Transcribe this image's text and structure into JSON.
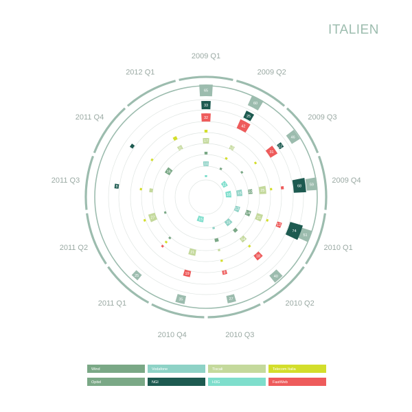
{
  "title": "ITALIEN",
  "chart_data": {
    "type": "radial-bar",
    "title": "ITALIEN",
    "categories": [
      "2009 Q1",
      "2009 Q2",
      "2009 Q3",
      "2009 Q4",
      "2010 Q1",
      "2010 Q2",
      "2010 Q3",
      "2010 Q4",
      "2011 Q1",
      "2011 Q2",
      "2011 Q3",
      "2011 Q4",
      "2012 Q1"
    ],
    "legend": [
      {
        "name": "Wind",
        "color": "#7aa886"
      },
      {
        "name": "Vodafone",
        "color": "#8ed2c6"
      },
      {
        "name": "Tiscali",
        "color": "#c4d99c"
      },
      {
        "name": "Telecom Italia",
        "color": "#d3de2b"
      },
      {
        "name": "Opitel",
        "color": "#7aa886"
      },
      {
        "name": "NGI",
        "color": "#1d5a50"
      },
      {
        "name": "H3G",
        "color": "#7edecc"
      },
      {
        "name": "FastWeb",
        "color": "#ee5b5b"
      }
    ],
    "legend_position": "bottom",
    "segments": [
      {
        "q": 0,
        "r": 122,
        "v": 65,
        "c": "#9cbcae",
        "w": 17
      },
      {
        "q": 0,
        "r": 103,
        "v": 33,
        "c": "#1d5a50",
        "w": 12
      },
      {
        "q": 0,
        "r": 85,
        "v": 32,
        "c": "#ee5b5b",
        "w": 12
      },
      {
        "q": 0,
        "r": 69,
        "v": 6,
        "c": "#d3de2b",
        "w": 4
      },
      {
        "q": 0,
        "r": 53,
        "v": 17,
        "c": "#c4d99c",
        "w": 8
      },
      {
        "q": 0,
        "r": 37,
        "v": 5,
        "c": "#7aa886",
        "w": 4
      },
      {
        "q": 0,
        "r": 20,
        "v": 10,
        "c": "#8ed2c6",
        "w": 7
      },
      {
        "q": 0,
        "r": 4,
        "v": 2,
        "c": "#7edecc",
        "w": 3
      },
      {
        "q": 1,
        "r": 122,
        "v": 60,
        "c": "#9cbcae",
        "w": 16
      },
      {
        "q": 1,
        "r": 103,
        "v": 25,
        "c": "#1d5a50",
        "w": 11
      },
      {
        "q": 1,
        "r": 85,
        "v": 42,
        "c": "#ee5b5b",
        "w": 14
      },
      {
        "q": 1,
        "r": 53,
        "v": 10,
        "c": "#c4d99c",
        "w": 6
      },
      {
        "q": 1,
        "r": 37,
        "v": 3,
        "c": "#d3de2b",
        "w": 3
      },
      {
        "q": 1,
        "r": 20,
        "v": 3,
        "c": "#7aa886",
        "w": 3
      },
      {
        "q": 2,
        "r": 122,
        "v": 46,
        "c": "#9cbcae",
        "w": 14
      },
      {
        "q": 2,
        "r": 103,
        "v": 12,
        "c": "#1d5a50",
        "w": 7
      },
      {
        "q": 2,
        "r": 85,
        "v": 31,
        "c": "#ee5b5b",
        "w": 12
      },
      {
        "q": 2,
        "r": 61,
        "v": 3,
        "c": "#d3de2b",
        "w": 3
      },
      {
        "q": 2,
        "r": 37,
        "v": 3,
        "c": "#7aa886",
        "w": 3
      },
      {
        "q": 2,
        "r": 4,
        "v": 11,
        "c": "#7edecc",
        "w": 7
      },
      {
        "q": 3,
        "r": 122,
        "v": 59,
        "c": "#9cbcae",
        "w": 16
      },
      {
        "q": 3,
        "r": 103,
        "v": 68,
        "c": "#1d5a50",
        "w": 18
      },
      {
        "q": 3,
        "r": 85,
        "v": 6,
        "c": "#ee5b5b",
        "w": 4
      },
      {
        "q": 3,
        "r": 69,
        "v": 3,
        "c": "#d3de2b",
        "w": 3
      },
      {
        "q": 3,
        "r": 53,
        "v": 25,
        "c": "#c4d99c",
        "w": 10
      },
      {
        "q": 3,
        "r": 37,
        "v": 10,
        "c": "#7aa886",
        "w": 6
      },
      {
        "q": 3,
        "r": 20,
        "v": 15,
        "c": "#8ed2c6",
        "w": 8
      },
      {
        "q": 3,
        "r": 4,
        "v": 16,
        "c": "#7edecc",
        "w": 8
      },
      {
        "q": 4,
        "r": 122,
        "v": 51,
        "c": "#9cbcae",
        "w": 15
      },
      {
        "q": 4,
        "r": 103,
        "v": 74,
        "c": "#1d5a50",
        "w": 19
      },
      {
        "q": 4,
        "r": 85,
        "v": 12,
        "c": "#ee5b5b",
        "w": 7
      },
      {
        "q": 4,
        "r": 69,
        "v": 2,
        "c": "#d3de2b",
        "w": 3
      },
      {
        "q": 4,
        "r": 53,
        "v": 21,
        "c": "#c4d99c",
        "w": 9
      },
      {
        "q": 4,
        "r": 37,
        "v": 14,
        "c": "#7aa886",
        "w": 7
      },
      {
        "q": 4,
        "r": 20,
        "v": 12,
        "c": "#8ed2c6",
        "w": 7
      },
      {
        "q": 5,
        "r": 122,
        "v": 40,
        "c": "#9cbcae",
        "w": 13
      },
      {
        "q": 5,
        "r": 85,
        "v": 18,
        "c": "#ee5b5b",
        "w": 9
      },
      {
        "q": 5,
        "r": 69,
        "v": 3,
        "c": "#d3de2b",
        "w": 3
      },
      {
        "q": 5,
        "r": 53,
        "v": 14,
        "c": "#c4d99c",
        "w": 7
      },
      {
        "q": 5,
        "r": 37,
        "v": 7,
        "c": "#7aa886",
        "w": 5
      },
      {
        "q": 5,
        "r": 20,
        "v": 15,
        "c": "#8ed2c6",
        "w": 8
      },
      {
        "q": 6,
        "r": 122,
        "v": 27,
        "c": "#9cbcae",
        "w": 11
      },
      {
        "q": 6,
        "r": 85,
        "v": 8,
        "c": "#ee5b5b",
        "w": 6
      },
      {
        "q": 6,
        "r": 69,
        "v": 3,
        "c": "#d3de2b",
        "w": 3
      },
      {
        "q": 6,
        "r": 53,
        "v": 3,
        "c": "#c4d99c",
        "w": 3
      },
      {
        "q": 6,
        "r": 37,
        "v": 7,
        "c": "#7aa886",
        "w": 5
      },
      {
        "q": 6,
        "r": 20,
        "v": 3,
        "c": "#8ed2c6",
        "w": 3
      },
      {
        "q": 7,
        "r": 122,
        "v": 35,
        "c": "#9cbcae",
        "w": 12
      },
      {
        "q": 7,
        "r": 85,
        "v": 19,
        "c": "#ee5b5b",
        "w": 9
      },
      {
        "q": 7,
        "r": 53,
        "v": 21,
        "c": "#c4d99c",
        "w": 9
      },
      {
        "q": 7,
        "r": 4,
        "v": 15,
        "c": "#7edecc",
        "w": 8
      },
      {
        "q": 8,
        "r": 122,
        "v": 25,
        "c": "#9cbcae",
        "w": 10
      },
      {
        "q": 8,
        "r": 69,
        "v": 3,
        "c": "#ee5b5b",
        "w": 3
      },
      {
        "q": 8,
        "r": 61,
        "v": 3,
        "c": "#d3de2b",
        "w": 3
      },
      {
        "q": 8,
        "r": 53,
        "v": 3,
        "c": "#7aa886",
        "w": 3
      },
      {
        "q": 9,
        "r": 69,
        "v": 3,
        "c": "#d3de2b",
        "w": 3
      },
      {
        "q": 9,
        "r": 53,
        "v": 27,
        "c": "#c4d99c",
        "w": 10
      },
      {
        "q": 9,
        "r": 37,
        "v": 3,
        "c": "#7aa886",
        "w": 3
      },
      {
        "q": 10,
        "r": 103,
        "v": 8,
        "c": "#1d5a50",
        "w": 6
      },
      {
        "q": 10,
        "r": 69,
        "v": 3,
        "c": "#d3de2b",
        "w": 3
      },
      {
        "q": 10,
        "r": 53,
        "v": 6,
        "c": "#c4d99c",
        "w": 5
      },
      {
        "q": 11,
        "r": 103,
        "v": 6,
        "c": "#1d5a50",
        "w": 5
      },
      {
        "q": 11,
        "r": 69,
        "v": 3,
        "c": "#d3de2b",
        "w": 3
      },
      {
        "q": 11,
        "r": 37,
        "v": 16,
        "c": "#7aa886",
        "w": 8
      },
      {
        "q": 12,
        "r": 69,
        "v": 13,
        "c": "#d3de2b",
        "w": 5
      },
      {
        "q": 12,
        "r": 53,
        "v": 11,
        "c": "#c4d99c",
        "w": 6
      }
    ]
  }
}
